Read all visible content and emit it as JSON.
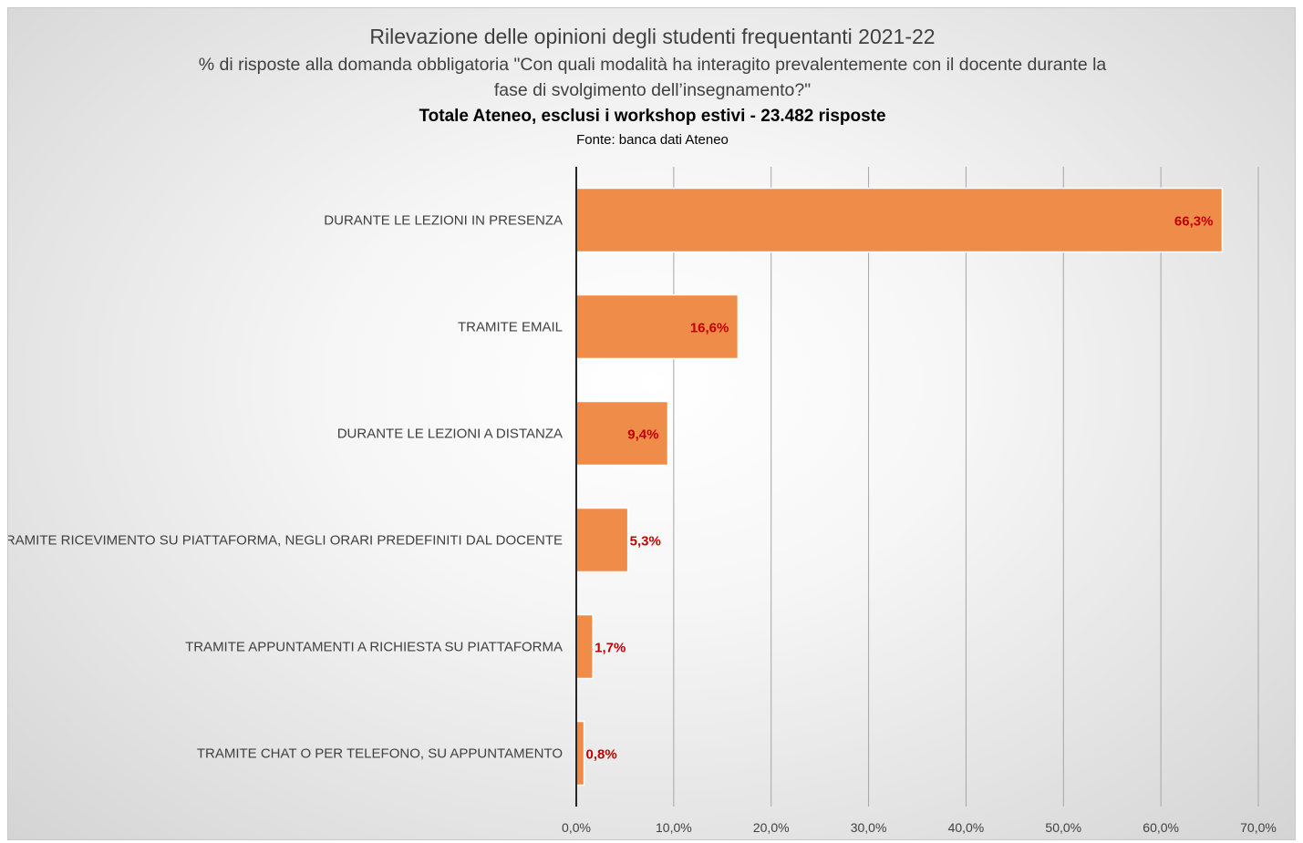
{
  "chart": {
    "title": "Rilevazione delle opinioni degli studenti frequentanti 2021-22",
    "subtitle_line1": "% di risposte alla domanda obbligatoria  \"Con quali modalità ha interagito prevalentemente con il docente durante la",
    "subtitle_line2": "fase di svolgimento dell’insegnamento?\"",
    "subtitle_line3": "Totale Ateneo, esclusi i workshop estivi - 23.482 risposte",
    "source": "Fonte: banca dati Ateneo"
  },
  "chart_data": {
    "type": "bar",
    "orientation": "horizontal",
    "title": "Rilevazione delle opinioni degli studenti frequentanti 2021-22",
    "categories": [
      "DURANTE LE LEZIONI IN PRESENZA",
      "TRAMITE EMAIL",
      "DURANTE LE LEZIONI A DISTANZA",
      "TRAMITE RICEVIMENTO SU PIATTAFORMA, NEGLI ORARI PREDEFINITI DAL DOCENTE",
      "TRAMITE APPUNTAMENTI A RICHIESTA SU PIATTAFORMA",
      "TRAMITE CHAT O PER TELEFONO, SU APPUNTAMENTO"
    ],
    "values": [
      66.3,
      16.6,
      9.4,
      5.3,
      1.7,
      0.8
    ],
    "value_labels": [
      "66,3%",
      "16,6%",
      "9,4%",
      "5,3%",
      "1,7%",
      "0,8%"
    ],
    "xlim": [
      0,
      70
    ],
    "x_ticks": [
      0,
      10,
      20,
      30,
      40,
      50,
      60,
      70
    ],
    "x_tick_labels": [
      "0,0%",
      "10,0%",
      "20,0%",
      "30,0%",
      "40,0%",
      "50,0%",
      "60,0%",
      "70,0%"
    ],
    "xlabel": "",
    "ylabel": "",
    "grid": "vertical",
    "legend": "none",
    "bar_color": "#ef8c4a",
    "value_label_color": "#c00000"
  }
}
